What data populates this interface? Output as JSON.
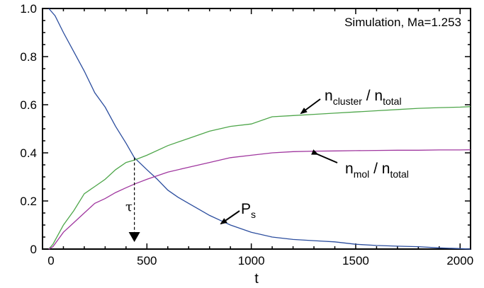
{
  "chart_data": {
    "type": "line",
    "xlabel": "t",
    "ylabel": "",
    "xlim": [
      0,
      2050
    ],
    "ylim": [
      0,
      1.0
    ],
    "x_ticks": [
      500,
      1000,
      1500,
      2000
    ],
    "x_tick_labels": [
      "500",
      "1000",
      "1500",
      "2000"
    ],
    "extra_x_tick_label": "0",
    "y_ticks": [
      0,
      0.2,
      0.4,
      0.6,
      0.8,
      1.0
    ],
    "y_tick_labels": [
      "0",
      "0.2",
      "0.4",
      "0.6",
      "0.8",
      "1.0"
    ],
    "grid": false,
    "legend": "none",
    "annotation_text": "Simulation, Ma=1.253",
    "tau_label": "τ",
    "tau_x": 440,
    "series": [
      {
        "color": "#2b4d9e",
        "label_main": "P",
        "label_sub": "s",
        "x": [
          30,
          60,
          100,
          150,
          200,
          250,
          300,
          350,
          400,
          440,
          500,
          550,
          600,
          650,
          700,
          750,
          800,
          850,
          900,
          1000,
          1100,
          1200,
          1300,
          1400,
          1500,
          1600,
          1700,
          1800,
          1900,
          2000,
          2050
        ],
        "y": [
          1.0,
          0.97,
          0.9,
          0.82,
          0.74,
          0.65,
          0.59,
          0.51,
          0.44,
          0.38,
          0.33,
          0.29,
          0.245,
          0.215,
          0.19,
          0.165,
          0.14,
          0.12,
          0.1,
          0.07,
          0.05,
          0.04,
          0.035,
          0.03,
          0.02,
          0.015,
          0.012,
          0.01,
          0.005,
          0.002,
          0.0
        ]
      },
      {
        "color": "#4ea64a",
        "label_main": "n",
        "label_sub": "cluster",
        "label_main2": " / n",
        "label_sub2": "total",
        "x": [
          30,
          50,
          100,
          150,
          200,
          250,
          300,
          350,
          400,
          440,
          500,
          600,
          700,
          800,
          900,
          1000,
          1100,
          1200,
          1300,
          1400,
          1500,
          1600,
          1700,
          1800,
          1900,
          2000,
          2050
        ],
        "y": [
          0.0,
          0.02,
          0.1,
          0.16,
          0.23,
          0.26,
          0.29,
          0.33,
          0.36,
          0.37,
          0.39,
          0.43,
          0.46,
          0.49,
          0.51,
          0.52,
          0.55,
          0.555,
          0.56,
          0.565,
          0.57,
          0.575,
          0.58,
          0.585,
          0.588,
          0.59,
          0.592
        ]
      },
      {
        "color": "#a0379f",
        "label_main": "n",
        "label_sub": "mol",
        "label_main2": " / n",
        "label_sub2": "total",
        "x": [
          30,
          50,
          100,
          150,
          200,
          250,
          300,
          350,
          400,
          440,
          500,
          600,
          700,
          800,
          900,
          1000,
          1100,
          1200,
          1300,
          1400,
          1500,
          1600,
          1700,
          1800,
          1900,
          2000,
          2050
        ],
        "y": [
          0.0,
          0.01,
          0.07,
          0.11,
          0.15,
          0.19,
          0.21,
          0.235,
          0.255,
          0.27,
          0.29,
          0.32,
          0.34,
          0.36,
          0.38,
          0.39,
          0.4,
          0.405,
          0.407,
          0.408,
          0.409,
          0.41,
          0.411,
          0.411,
          0.412,
          0.412,
          0.413
        ]
      }
    ]
  }
}
